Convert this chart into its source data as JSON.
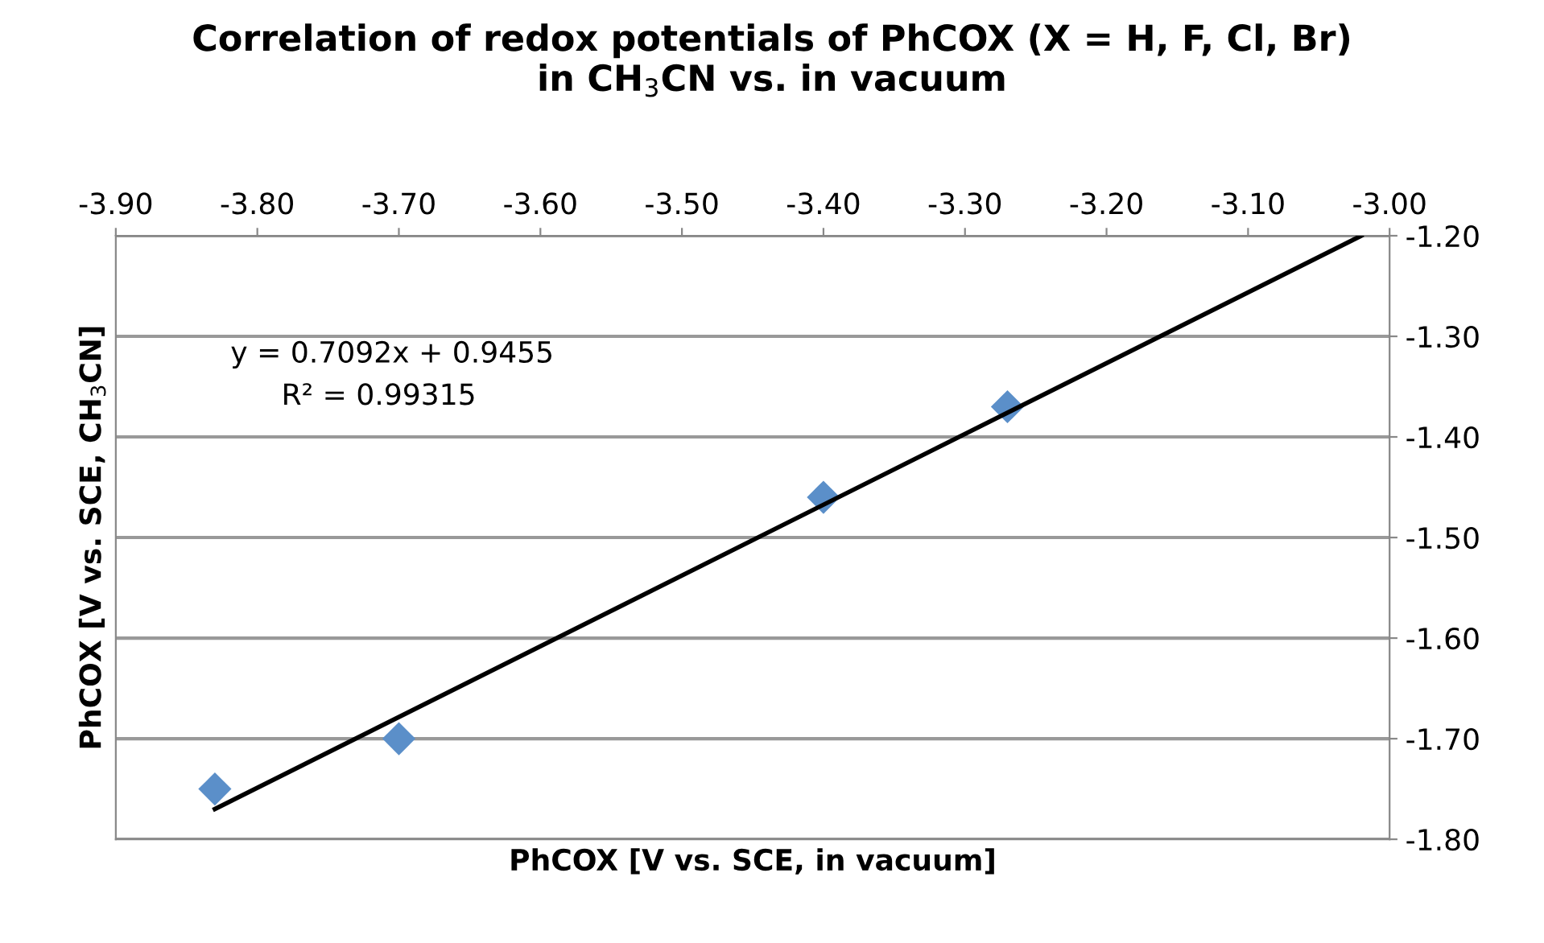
{
  "chart_data": {
    "type": "scatter",
    "title": "Correlation of redox potentials of PhCOX (X = H, F, Cl, Br)\nin CH$_{3}$CN vs. in vacuum",
    "xlabel": "PhCOX [V vs. SCE, in vacuum]",
    "ylabel": "PhCOX [V vs. SCE, CH$_{3}$CN]",
    "annotations": [
      "y = 0.7092x + 0.9455",
      "R² = 0.99315"
    ],
    "series": [
      {
        "color": "#5b8fc9",
        "marker": "diamond",
        "x": [
          -3.83,
          -3.7,
          -3.4,
          -3.27
        ],
        "values": [
          -1.75,
          -1.7,
          -1.46,
          -1.37
        ]
      },
      {
        "type": "line",
        "color": "#000000",
        "marker": "none",
        "line_style": "solid",
        "x": [
          -3.83,
          -3.02
        ],
        "values": [
          -1.77,
          -1.2
        ]
      }
    ],
    "xlim": [
      -3.9,
      -3.0
    ],
    "xticks": [
      {
        "value": -3.9,
        "label": "-3.90"
      },
      {
        "value": -3.8,
        "label": "-3.80"
      },
      {
        "value": -3.7,
        "label": "-3.70"
      },
      {
        "value": -3.6,
        "label": "-3.60"
      },
      {
        "value": -3.5,
        "label": "-3.50"
      },
      {
        "value": -3.4,
        "label": "-3.40"
      },
      {
        "value": -3.3,
        "label": "-3.30"
      },
      {
        "value": -3.2,
        "label": "-3.20"
      },
      {
        "value": -3.1,
        "label": "-3.10"
      },
      {
        "value": -3.0,
        "label": "-3.00"
      }
    ],
    "ylim": [
      -1.8,
      -1.2
    ],
    "yticks": [
      {
        "value": -1.8,
        "label": "-1.80"
      },
      {
        "value": -1.7,
        "label": "-1.70"
      },
      {
        "value": -1.6,
        "label": "-1.60"
      },
      {
        "value": -1.5,
        "label": "-1.50"
      },
      {
        "value": -1.4,
        "label": "-1.40"
      },
      {
        "value": -1.3,
        "label": "-1.30"
      },
      {
        "value": -1.2,
        "label": "-1.20"
      }
    ],
    "grid": "y"
  }
}
